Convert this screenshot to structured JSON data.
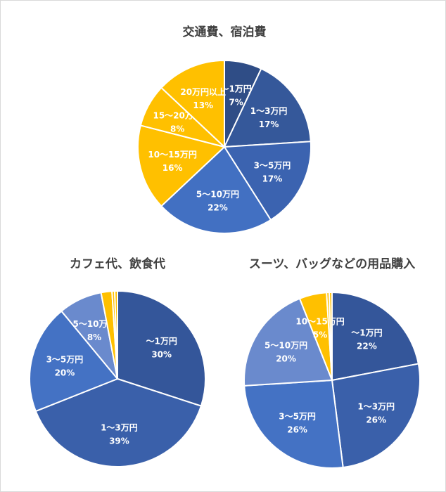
{
  "chart_data": [
    {
      "type": "pie",
      "title": "交通費、宿泊費",
      "categories": [
        "〜1万円",
        "1〜3万円",
        "3〜5万円",
        "5〜10万円",
        "10〜15万円",
        "15〜20万円",
        "20万円以上"
      ],
      "values": [
        7,
        17,
        17,
        22,
        16,
        8,
        13
      ],
      "labels": [
        "7%",
        "17%",
        "17%",
        "22%",
        "16%",
        "8%",
        "13%"
      ],
      "colors": [
        "#2f4d86",
        "#35589a",
        "#3b63b0",
        "#4270c2",
        "#ffc000",
        "#ffc000",
        "#ffc000"
      ]
    },
    {
      "type": "pie",
      "title": "カフェ代、飲食代",
      "categories": [
        "〜1万円",
        "1〜3万円",
        "3〜5万円",
        "5〜10万円",
        "",
        "",
        ""
      ],
      "values": [
        30,
        39,
        20,
        8,
        2,
        0.5,
        0.5
      ],
      "labels": [
        "30%",
        "39%",
        "20%",
        "8%",
        "",
        "",
        ""
      ],
      "colors": [
        "#34569a",
        "#3a60aa",
        "#4472c4",
        "#6a8acd",
        "#ffc000",
        "#ffc000",
        "#ffc000"
      ]
    },
    {
      "type": "pie",
      "title": "スーツ、バッグなどの用品購入",
      "categories": [
        "〜1万円",
        "1〜3万円",
        "3〜5万円",
        "5〜10万円",
        "10〜15万円",
        "",
        ""
      ],
      "values": [
        22,
        26,
        26,
        20,
        5,
        0.5,
        0.5
      ],
      "labels": [
        "22%",
        "26%",
        "26%",
        "20%",
        "5%",
        "",
        ""
      ],
      "colors": [
        "#34569a",
        "#3a60aa",
        "#4472c4",
        "#6a8acd",
        "#ffc000",
        "#ffc000",
        "#ffc000"
      ]
    }
  ]
}
